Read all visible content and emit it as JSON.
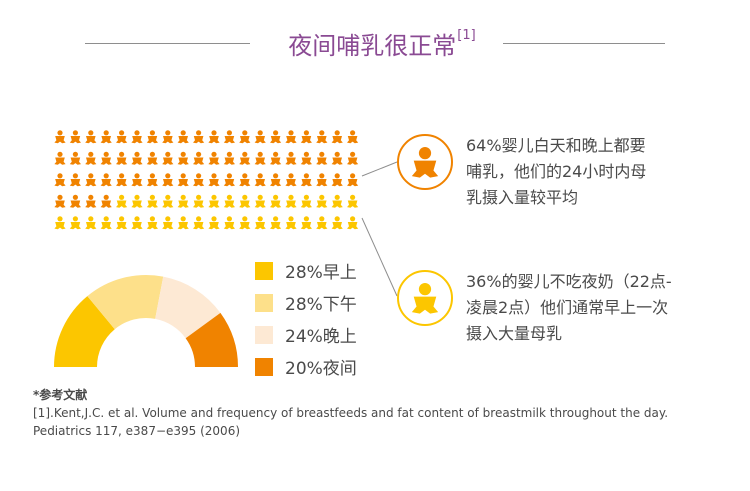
{
  "title": "夜间哺乳很正常",
  "title_ref": "[1]",
  "colors": {
    "orange": "#f08300",
    "yellow": "#fcc600",
    "light_yellow": "#fde08a",
    "pale": "#fde9d4",
    "purple": "#8a4a93"
  },
  "callouts": [
    {
      "icon": "baby-icon",
      "color": "#f08300",
      "lines": [
        "64%婴儿白天和晚上都要",
        "哺乳，他们的24小时内母",
        "乳摄入量较平均"
      ]
    },
    {
      "icon": "baby-icon",
      "color": "#fcc600",
      "lines": [
        "36%的婴儿不吃夜奶（22点-",
        "凌晨2点）他们通常早上一次",
        "摄入大量母乳"
      ]
    }
  ],
  "chart_data": [
    {
      "type": "pictogram",
      "total": 100,
      "series": [
        {
          "name": "白天和晚上都要哺乳",
          "value": 64,
          "color": "#f08300"
        },
        {
          "name": "不吃夜奶",
          "value": 36,
          "color": "#fcc600"
        }
      ]
    },
    {
      "type": "pie",
      "style": "half-donut",
      "categories": [
        "早上",
        "下午",
        "晚上",
        "夜间"
      ],
      "values": [
        28,
        28,
        24,
        20
      ],
      "labels": [
        "28%早上",
        "28%下午",
        "24%晚上",
        "20%夜间"
      ],
      "colors": [
        "#fcc600",
        "#fde08a",
        "#fde9d4",
        "#f08300"
      ]
    }
  ],
  "references": {
    "heading": "*参考文献",
    "lines": [
      "[1].Kent,J.C. et al. Volume and frequency of breastfeeds and fat content of breastmilk throughout the day.",
      "Pediatrics 117, e387−e395 (2006)"
    ]
  }
}
